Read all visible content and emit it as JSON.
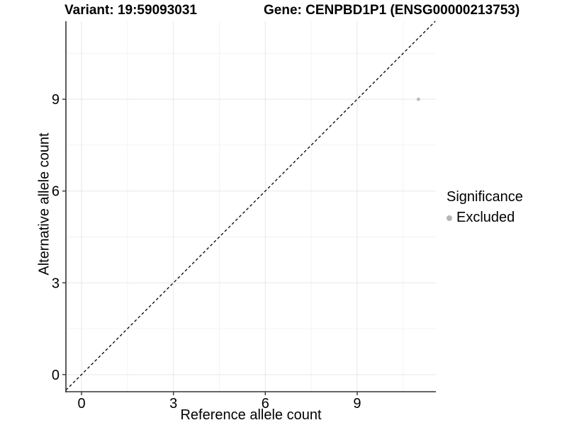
{
  "header": {
    "variant_title": "Variant: 19:59093031",
    "gene_title": "Gene: CENPBD1P1 (ENSG00000213753)"
  },
  "chart_data": {
    "type": "scatter",
    "xlabel": "Reference allele count",
    "ylabel": "Alternative allele count",
    "xlim": [
      -0.51,
      11.57
    ],
    "ylim": [
      -0.56,
      11.55
    ],
    "xticks": [
      0,
      3,
      6,
      9
    ],
    "yticks": [
      0,
      3,
      6,
      9
    ],
    "x_minor_ticks": [
      1.5,
      4.5,
      7.5,
      10.5
    ],
    "y_minor_ticks": [
      1.5,
      4.5,
      7.5,
      10.5
    ],
    "grid": true,
    "points": [
      {
        "x": 11,
        "y": 9,
        "series": "Excluded"
      }
    ],
    "identity_line": {
      "style": "dashed",
      "from": -0.51,
      "to": 11.55
    },
    "legend": {
      "title": "Significance",
      "position": "right",
      "items": [
        {
          "label": "Excluded",
          "color": "#b5b5b5"
        }
      ]
    },
    "colors": {
      "point": "#bdbdbd",
      "grid_major": "#e7e7e7",
      "grid_minor": "#f3f3f3",
      "axis": "#333333",
      "dashed_line": "#000000",
      "text": "#000000"
    }
  }
}
